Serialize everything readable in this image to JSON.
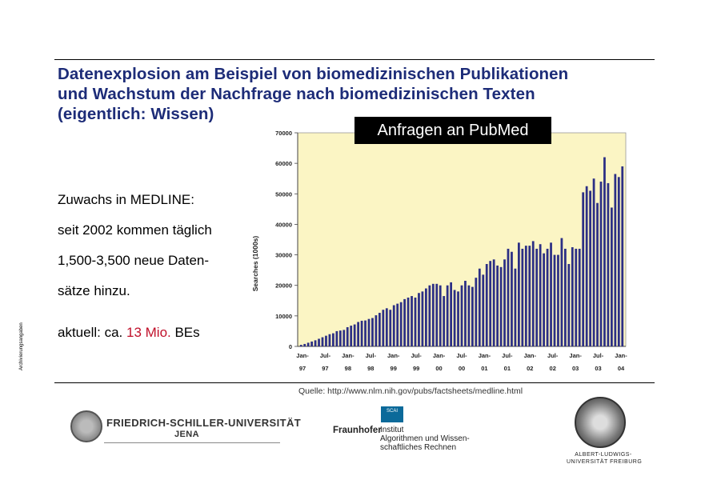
{
  "title": {
    "line1": "Datenexplosion am Beispiel von biomedizinischen Publikationen",
    "line2": "und Wachstum der Nachfrage nach biomedizinischen Texten",
    "line3": "(eigentlich: Wissen)"
  },
  "badge": "Anfragen an PubMed",
  "side_label": "Archivierungsangaben",
  "text": {
    "line1": "Zuwachs in MEDLINE:",
    "line2": "seit 2002 kommen täglich",
    "line3": "1,500-3,500 neue Daten-",
    "line4": "sätze hinzu.",
    "line5_prefix": "aktuell: ca. ",
    "line5_highlight": "13 Mio.",
    "line5_suffix": " BEs"
  },
  "source": "Quelle: http://www.nlm.nih.gov/pubs/factsheets/medline.html",
  "logos": {
    "jena_line1": "FRIEDRICH-SCHILLER-UNIVERSITÄT",
    "jena_line2": "JENA",
    "fraunhofer_box": "SCAI",
    "fraunhofer_word": "Fraunhofer",
    "fraunhofer_sub1": "Institut",
    "fraunhofer_sub2": "Algorithmen und Wissen-",
    "fraunhofer_sub3": "schaftliches Rechnen",
    "freiburg_line1": "ALBERT-LUDWIGS-",
    "freiburg_line2": "UNIVERSITÄT FREIBURG"
  },
  "colors": {
    "title": "#1d2c78",
    "highlight": "#c0102a",
    "plot_background": "#fbf5c4",
    "bar": "#2c2f85"
  },
  "chart_data": {
    "type": "bar",
    "ylabel": "Searches (1000s)",
    "ylim": [
      0,
      70000
    ],
    "yticks": [
      0,
      10000,
      20000,
      30000,
      40000,
      50000,
      60000,
      70000
    ],
    "tick_labels": [
      {
        "top": "Jan-",
        "bottom": "97"
      },
      {
        "top": "Jul-",
        "bottom": "97"
      },
      {
        "top": "Jan-",
        "bottom": "98"
      },
      {
        "top": "Jul-",
        "bottom": "98"
      },
      {
        "top": "Jan-",
        "bottom": "99"
      },
      {
        "top": "Jul-",
        "bottom": "99"
      },
      {
        "top": "Jan-",
        "bottom": "00"
      },
      {
        "top": "Jul-",
        "bottom": "00"
      },
      {
        "top": "Jan-",
        "bottom": "01"
      },
      {
        "top": "Jul-",
        "bottom": "01"
      },
      {
        "top": "Jan-",
        "bottom": "02"
      },
      {
        "top": "Jul-",
        "bottom": "02"
      },
      {
        "top": "Jan-",
        "bottom": "03"
      },
      {
        "top": "Jul-",
        "bottom": "03"
      },
      {
        "top": "Jan-",
        "bottom": "04"
      }
    ],
    "values": [
      500,
      800,
      1200,
      1600,
      2000,
      2500,
      3000,
      3500,
      4000,
      4300,
      5000,
      5200,
      5400,
      6300,
      6800,
      7200,
      8000,
      8400,
      8500,
      9000,
      9300,
      10200,
      11000,
      12000,
      12500,
      12000,
      13500,
      14000,
      14500,
      15500,
      16000,
      16500,
      16000,
      17500,
      18000,
      19000,
      20000,
      20500,
      20500,
      20000,
      16500,
      20000,
      21000,
      18500,
      18000,
      20000,
      21500,
      20000,
      19500,
      22500,
      25500,
      23500,
      27000,
      28000,
      28500,
      26500,
      26000,
      28500,
      32000,
      31000,
      25500,
      34000,
      32000,
      33000,
      33000,
      34500,
      32000,
      33500,
      30500,
      32000,
      34000,
      30000,
      30000,
      35500,
      32000,
      27000,
      32500,
      32000,
      32000,
      50500,
      52500,
      51000,
      55000,
      47000,
      54000,
      62000,
      53500,
      45500,
      56500,
      55500,
      59000
    ],
    "grid": false,
    "legend": "none"
  }
}
